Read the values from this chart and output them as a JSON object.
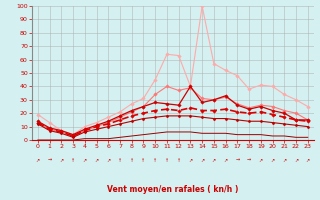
{
  "x": [
    0,
    1,
    2,
    3,
    4,
    5,
    6,
    7,
    8,
    9,
    10,
    11,
    12,
    13,
    14,
    15,
    16,
    17,
    18,
    19,
    20,
    21,
    22,
    23
  ],
  "series": [
    {
      "name": "max_gust",
      "color": "#ffaaaa",
      "linewidth": 0.8,
      "marker": "D",
      "markersize": 1.8,
      "values": [
        19,
        13,
        7,
        4,
        10,
        13,
        17,
        21,
        27,
        31,
        45,
        64,
        63,
        40,
        100,
        57,
        52,
        48,
        38,
        41,
        40,
        34,
        30,
        25
      ]
    },
    {
      "name": "max_wind",
      "color": "#ff7777",
      "linewidth": 0.8,
      "marker": "D",
      "markersize": 1.8,
      "values": [
        13,
        8,
        6,
        3,
        7,
        10,
        13,
        17,
        21,
        25,
        34,
        40,
        37,
        39,
        31,
        30,
        32,
        27,
        24,
        26,
        25,
        22,
        20,
        15
      ]
    },
    {
      "name": "avg_wind_high",
      "color": "#cc0000",
      "linewidth": 0.9,
      "marker": "D",
      "markersize": 1.8,
      "values": [
        14,
        9,
        7,
        4,
        8,
        11,
        14,
        18,
        22,
        25,
        28,
        27,
        26,
        40,
        28,
        30,
        33,
        26,
        23,
        25,
        22,
        20,
        15,
        15
      ]
    },
    {
      "name": "avg_wind_mid_dashed",
      "color": "#dd0000",
      "linewidth": 1.2,
      "marker": "D",
      "markersize": 1.8,
      "dashes": [
        4,
        2
      ],
      "values": [
        13,
        8,
        6,
        3,
        7,
        10,
        12,
        15,
        18,
        20,
        22,
        23,
        22,
        24,
        22,
        22,
        23,
        21,
        20,
        21,
        19,
        17,
        15,
        14
      ]
    },
    {
      "name": "avg_wind_low",
      "color": "#bb0000",
      "linewidth": 0.8,
      "marker": "D",
      "markersize": 1.5,
      "values": [
        12,
        7,
        5,
        2,
        6,
        8,
        10,
        12,
        14,
        16,
        17,
        18,
        18,
        18,
        17,
        16,
        16,
        15,
        14,
        14,
        13,
        12,
        11,
        10
      ]
    },
    {
      "name": "min_wind",
      "color": "#990000",
      "linewidth": 0.7,
      "marker": null,
      "markersize": 0,
      "values": [
        0,
        0,
        0,
        0,
        1,
        1,
        1,
        2,
        3,
        4,
        5,
        6,
        6,
        6,
        5,
        5,
        5,
        4,
        4,
        4,
        3,
        3,
        2,
        2
      ]
    }
  ],
  "arrow_chars": [
    "↗",
    "→",
    "↗",
    "↑",
    "↗",
    "↗",
    "↗",
    "↑",
    "↑",
    "↑",
    "↑",
    "↑",
    "↑",
    "↗",
    "↗",
    "↗",
    "↗",
    "→",
    "→",
    "↗",
    "↗",
    "↗",
    "↗",
    "↗"
  ],
  "xlabel": "Vent moyen/en rafales ( kn/h )",
  "ylim": [
    0,
    100
  ],
  "xlim": [
    -0.5,
    23.5
  ],
  "yticks": [
    0,
    10,
    20,
    30,
    40,
    50,
    60,
    70,
    80,
    90,
    100
  ],
  "xticks": [
    0,
    1,
    2,
    3,
    4,
    5,
    6,
    7,
    8,
    9,
    10,
    11,
    12,
    13,
    14,
    15,
    16,
    17,
    18,
    19,
    20,
    21,
    22,
    23
  ],
  "background_color": "#d4f0f0",
  "grid_color": "#aaaaaa",
  "tick_color": "#cc0000",
  "label_color": "#cc0000"
}
